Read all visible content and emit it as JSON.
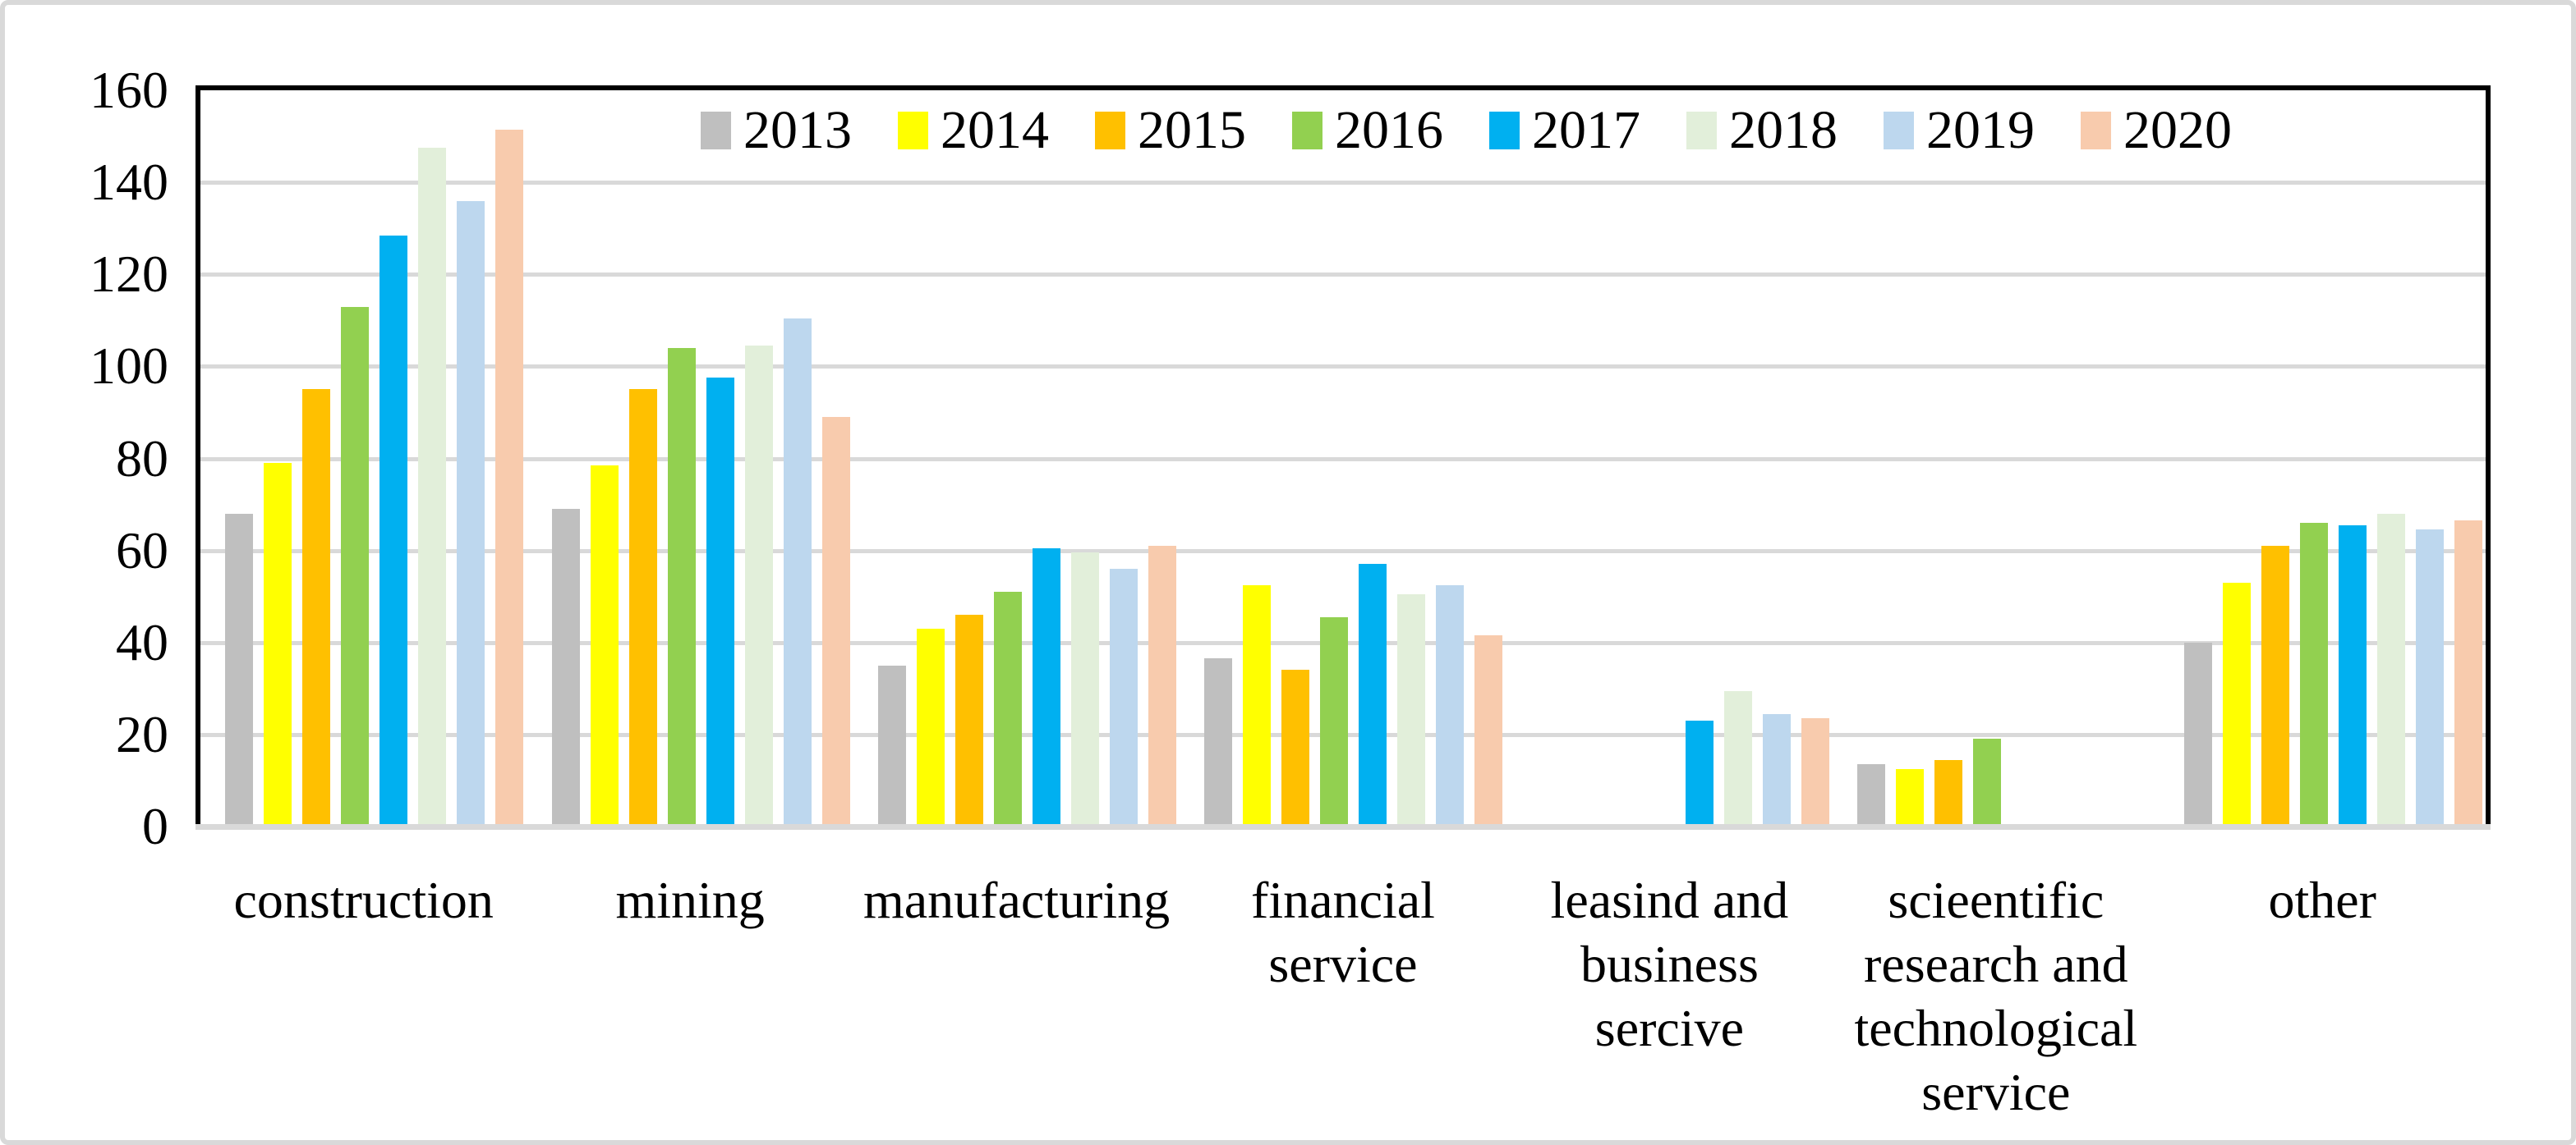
{
  "chart_data": {
    "type": "bar",
    "title": "",
    "xlabel": "",
    "ylabel": "",
    "ylim": [
      0,
      160
    ],
    "yticks": [
      0,
      20,
      40,
      60,
      80,
      100,
      120,
      140,
      160
    ],
    "grid": "horizontal",
    "legend_position": "top",
    "categories": [
      "construction",
      "mining",
      "manufacturing",
      "financial\nservice",
      "leasind and\nbusiness\nsercive",
      "scieentific\nresearch and\ntechnological\nservice",
      "other"
    ],
    "series": [
      {
        "name": "2013",
        "color": "#BFBFBF",
        "values": [
          68,
          69,
          35,
          36.5,
          null,
          13.5,
          40
        ]
      },
      {
        "name": "2014",
        "color": "#FFFF00",
        "values": [
          79,
          78.5,
          43,
          52.5,
          null,
          12.5,
          53
        ]
      },
      {
        "name": "2015",
        "color": "#FFC000",
        "values": [
          95,
          95,
          46,
          34,
          null,
          14.5,
          61
        ]
      },
      {
        "name": "2016",
        "color": "#92D050",
        "values": [
          113,
          104,
          51,
          45.5,
          null,
          19,
          66
        ]
      },
      {
        "name": "2017",
        "color": "#00B0F0",
        "values": [
          128.5,
          97.5,
          60.5,
          57,
          23,
          null,
          65.5
        ]
      },
      {
        "name": "2018",
        "color": "#E2EFDA",
        "values": [
          147.5,
          104.5,
          59.5,
          50.5,
          29.5,
          null,
          68
        ]
      },
      {
        "name": "2019",
        "color": "#BDD7EE",
        "values": [
          136,
          110.5,
          56,
          52.5,
          24.5,
          null,
          64.5
        ]
      },
      {
        "name": "2020",
        "color": "#F8CBAD",
        "values": [
          151.5,
          89,
          61,
          41.5,
          23.5,
          null,
          66.5
        ]
      }
    ]
  },
  "axis": {
    "y_tick_labels": [
      "160",
      "140",
      "120",
      "100",
      "80",
      "60",
      "40",
      "20",
      "0"
    ]
  },
  "style_colors": {
    "gridline": "#D9D9D9",
    "axis_line": "#000000",
    "outer_frame": "#D9D9D9",
    "background": "#FFFFFF"
  }
}
